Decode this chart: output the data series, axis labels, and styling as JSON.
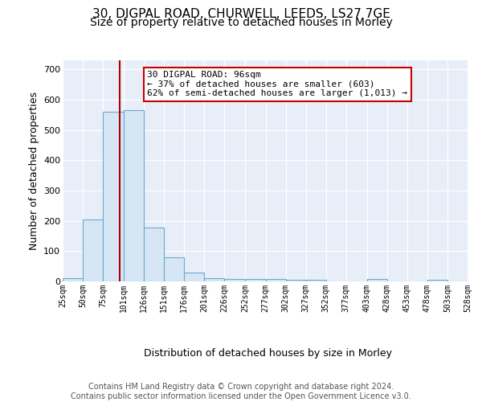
{
  "title_line1": "30, DIGPAL ROAD, CHURWELL, LEEDS, LS27 7GE",
  "title_line2": "Size of property relative to detached houses in Morley",
  "xlabel": "Distribution of detached houses by size in Morley",
  "ylabel": "Number of detached properties",
  "bar_edges": [
    25,
    50,
    75,
    101,
    126,
    151,
    176,
    201,
    226,
    252,
    277,
    302,
    327,
    352,
    377,
    403,
    428,
    453,
    478,
    503,
    528
  ],
  "bar_heights": [
    10,
    205,
    560,
    565,
    178,
    80,
    28,
    10,
    7,
    8,
    8,
    6,
    6,
    0,
    0,
    7,
    0,
    0,
    5,
    0,
    0
  ],
  "bar_color": "#d6e6f5",
  "bar_edgecolor": "#6aaad4",
  "property_size": 96,
  "red_line_color": "#aa0000",
  "annotation_line1": "30 DIGPAL ROAD: 96sqm",
  "annotation_line2": "← 37% of detached houses are smaller (603)",
  "annotation_line3": "62% of semi-detached houses are larger (1,013) →",
  "annotation_box_edgecolor": "#cc0000",
  "ylim_max": 730,
  "yticks": [
    0,
    100,
    200,
    300,
    400,
    500,
    600,
    700
  ],
  "background_color": "#e8eef8",
  "grid_color": "#ffffff",
  "footer_text": "Contains HM Land Registry data © Crown copyright and database right 2024.\nContains public sector information licensed under the Open Government Licence v3.0."
}
